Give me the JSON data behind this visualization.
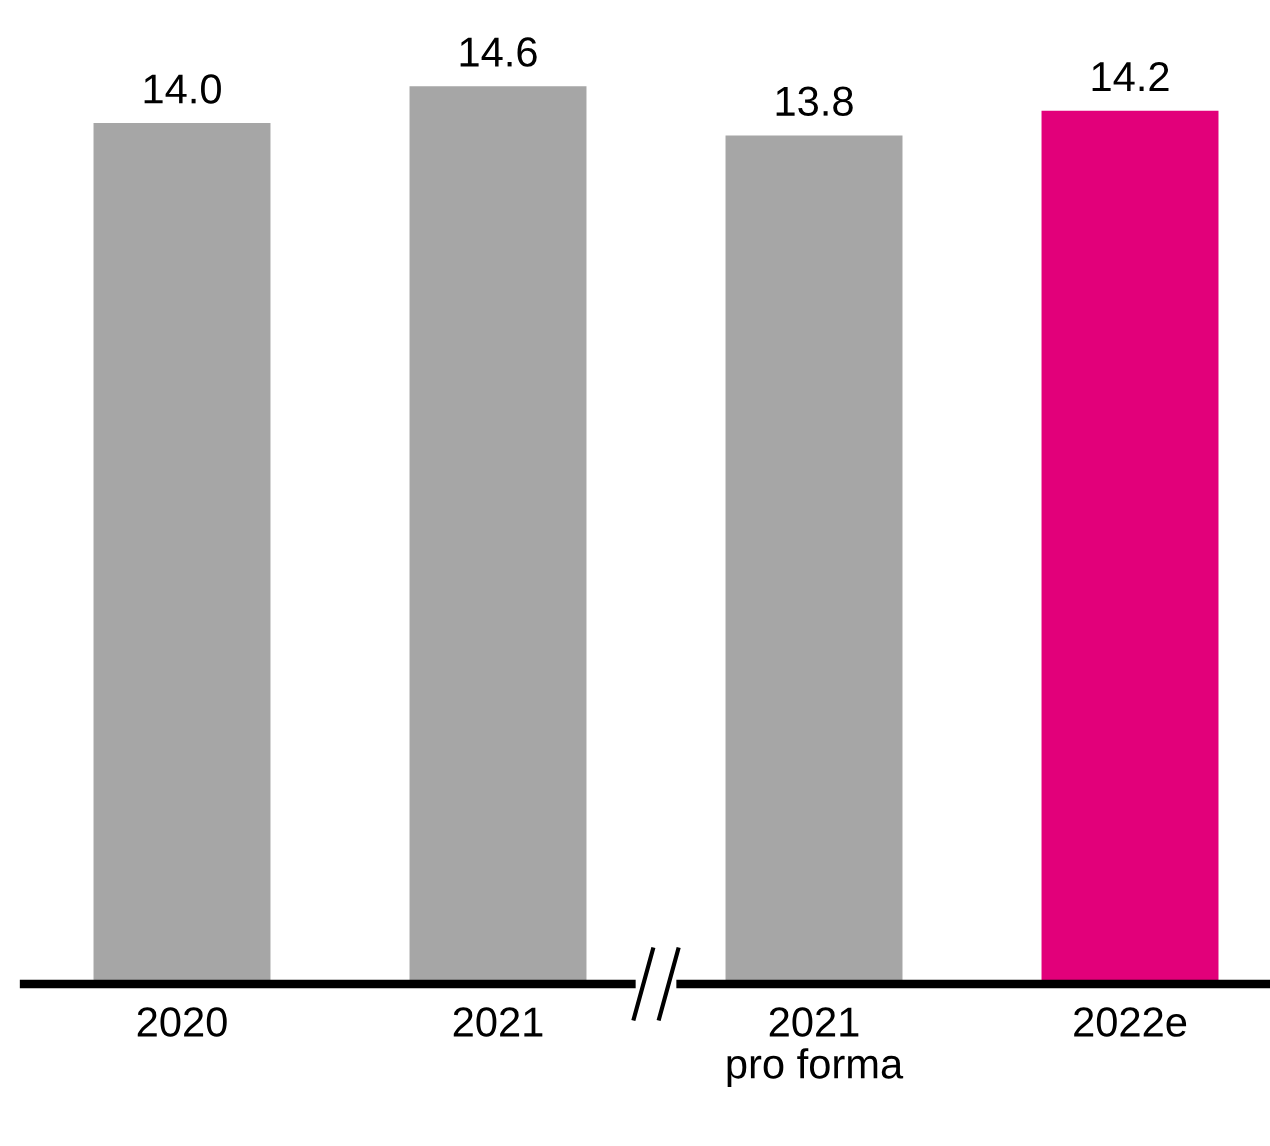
{
  "chart_data": {
    "type": "bar",
    "categories": [
      "2020",
      "2021",
      "2021\npro forma",
      "2022e"
    ],
    "values": [
      14.0,
      14.6,
      13.8,
      14.2
    ],
    "colors": [
      "#a6a6a6",
      "#a6a6a6",
      "#a6a6a6",
      "#e2007a"
    ],
    "value_labels": [
      "14.0",
      "14.6",
      "13.8",
      "14.2"
    ],
    "grid": false,
    "tick_labels": "x"
  }
}
